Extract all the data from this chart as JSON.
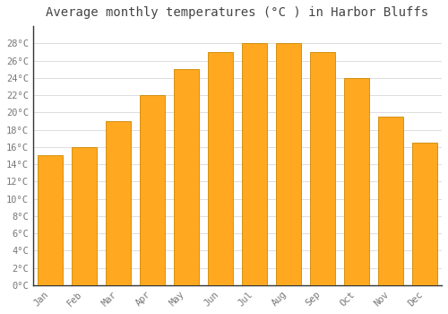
{
  "title": "Average monthly temperatures (°C ) in Harbor Bluffs",
  "months": [
    "Jan",
    "Feb",
    "Mar",
    "Apr",
    "May",
    "Jun",
    "Jul",
    "Aug",
    "Sep",
    "Oct",
    "Nov",
    "Dec"
  ],
  "values": [
    15,
    16,
    19,
    22,
    25,
    27,
    28,
    28,
    27,
    24,
    19.5,
    16.5
  ],
  "bar_color": "#FFA820",
  "bar_edge_color": "#CC8800",
  "background_color": "#FFFFFF",
  "grid_color": "#DDDDDD",
  "text_color": "#777777",
  "title_color": "#444444",
  "ylim": [
    0,
    30
  ],
  "yticks": [
    0,
    2,
    4,
    6,
    8,
    10,
    12,
    14,
    16,
    18,
    20,
    22,
    24,
    26,
    28
  ],
  "title_fontsize": 10,
  "tick_fontsize": 7.5,
  "bar_width": 0.75
}
